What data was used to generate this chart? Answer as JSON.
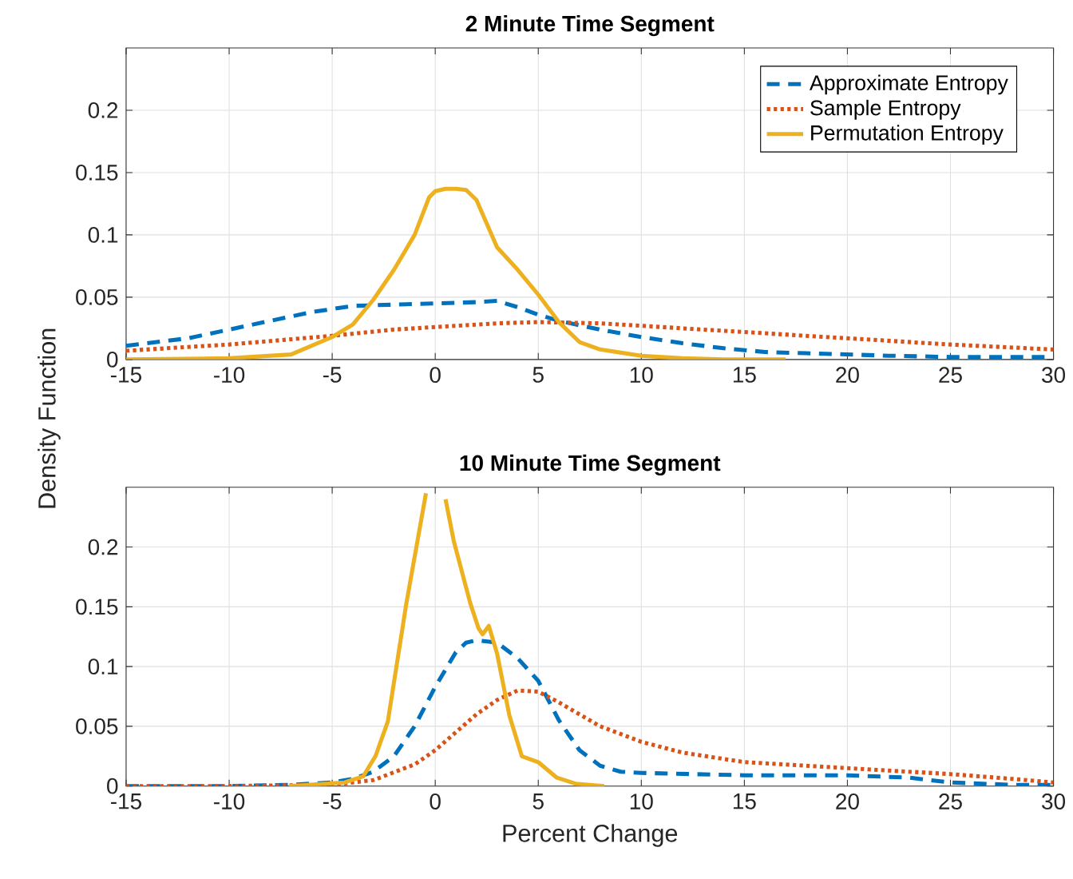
{
  "chart_data": [
    {
      "type": "line",
      "title": "2 Minute Time Segment",
      "xlim": [
        -15,
        30
      ],
      "ylim": [
        0,
        0.25
      ],
      "xticks": [
        -15,
        -10,
        -5,
        0,
        5,
        10,
        15,
        20,
        25,
        30
      ],
      "yticks": [
        0,
        0.05,
        0.1,
        0.15,
        0.2
      ],
      "grid": true,
      "legend": "top right",
      "series": [
        {
          "name": "Approximate Entropy",
          "color": "#0072bd",
          "line_style": "dashed",
          "x": [
            -15,
            -12,
            -10,
            -8,
            -6,
            -4,
            -2,
            0,
            2,
            3,
            4,
            5,
            6,
            8,
            10,
            12,
            14,
            16,
            18,
            20,
            22,
            25,
            28,
            30
          ],
          "values": [
            0.011,
            0.017,
            0.024,
            0.031,
            0.038,
            0.043,
            0.044,
            0.045,
            0.046,
            0.047,
            0.042,
            0.036,
            0.031,
            0.024,
            0.018,
            0.013,
            0.009,
            0.006,
            0.005,
            0.004,
            0.003,
            0.002,
            0.002,
            0.002
          ]
        },
        {
          "name": "Sample Entropy",
          "color": "#d95319",
          "line_style": "dotted",
          "x": [
            -15,
            -10,
            -5,
            -2,
            0,
            3,
            5,
            8,
            10,
            15,
            20,
            25,
            30
          ],
          "values": [
            0.007,
            0.012,
            0.019,
            0.024,
            0.026,
            0.029,
            0.03,
            0.029,
            0.027,
            0.022,
            0.017,
            0.012,
            0.008
          ]
        },
        {
          "name": "Permutation Entropy",
          "color": "#edb120",
          "line_style": "solid",
          "x": [
            -15,
            -10,
            -7,
            -5,
            -4,
            -3,
            -2,
            -1,
            -0.3,
            0,
            0.5,
            1,
            1.5,
            2,
            3,
            4,
            5,
            6,
            7,
            8,
            10,
            12,
            14,
            17
          ],
          "values": [
            0,
            0.001,
            0.004,
            0.018,
            0.028,
            0.048,
            0.072,
            0.1,
            0.13,
            0.135,
            0.137,
            0.137,
            0.136,
            0.128,
            0.09,
            0.072,
            0.052,
            0.03,
            0.014,
            0.008,
            0.003,
            0.001,
            0,
            0
          ]
        }
      ]
    },
    {
      "type": "line",
      "title": "10 Minute Time Segment",
      "xlabel": "Percent Change",
      "ylabel": "Density Function",
      "xlim": [
        -15,
        30
      ],
      "ylim": [
        0,
        0.25
      ],
      "xticks": [
        -15,
        -10,
        -5,
        0,
        5,
        10,
        15,
        20,
        25,
        30
      ],
      "yticks": [
        0,
        0.05,
        0.1,
        0.15,
        0.2
      ],
      "grid": true,
      "series": [
        {
          "color": "#0072bd",
          "line_style": "dashed",
          "x": [
            -15,
            -10,
            -7,
            -5,
            -4,
            -3,
            -2,
            -1,
            0,
            1,
            1.5,
            2,
            3,
            4,
            5,
            6,
            7,
            8,
            9,
            10,
            15,
            20,
            23,
            25,
            28,
            30
          ],
          "values": [
            0,
            0,
            0.001,
            0.003,
            0.006,
            0.012,
            0.025,
            0.05,
            0.083,
            0.112,
            0.12,
            0.122,
            0.12,
            0.107,
            0.088,
            0.055,
            0.03,
            0.017,
            0.012,
            0.011,
            0.009,
            0.009,
            0.007,
            0.003,
            0.001,
            0.001
          ]
        },
        {
          "color": "#d95319",
          "line_style": "dotted",
          "x": [
            -15,
            -10,
            -5,
            -3,
            -1,
            0,
            1,
            2,
            3,
            4,
            5,
            6,
            8,
            10,
            12,
            15,
            20,
            25,
            28,
            30
          ],
          "values": [
            0,
            0,
            0.001,
            0.005,
            0.018,
            0.03,
            0.045,
            0.06,
            0.072,
            0.08,
            0.079,
            0.07,
            0.05,
            0.037,
            0.028,
            0.02,
            0.015,
            0.01,
            0.006,
            0.003
          ]
        },
        {
          "color": "#edb120",
          "line_style": "solid",
          "x": [
            -7.1,
            -4.4,
            -3.5,
            -2.9,
            -2.3,
            -1.4,
            -0.45,
            -0.15,
            0.3,
            0.5,
            0.9,
            1.7,
            2.1,
            2.3,
            2.6,
            3.0,
            3.6,
            4.2,
            5,
            5.9,
            6.8,
            8.2
          ],
          "values": [
            0,
            0.003,
            0.008,
            0.025,
            0.054,
            0.153,
            0.245,
            null,
            null,
            0.24,
            0.205,
            0.153,
            0.132,
            0.127,
            0.134,
            0.111,
            0.059,
            0.025,
            0.02,
            0.007,
            0.002,
            0
          ]
        }
      ]
    }
  ]
}
